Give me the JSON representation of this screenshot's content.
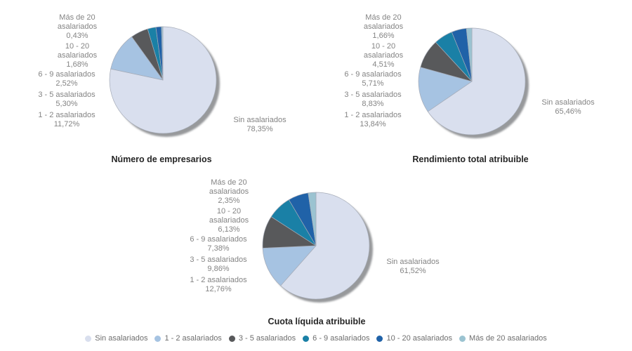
{
  "background": "#FFFFFF",
  "palette": {
    "slice_colors": [
      "#D9DFEE",
      "#A6C3E2",
      "#58595B",
      "#1A80A6",
      "#2062A8",
      "#9BC3D1"
    ],
    "shadow": "#97999B",
    "slice_border": "#A6ACB8",
    "label_text": "#848484",
    "title_text": "#262626",
    "legend_text": "#6E6E6E"
  },
  "categories": [
    "Sin asalariados",
    "1 - 2 asalariados",
    "3 - 5 asalariados",
    "6 - 9 asalariados",
    "10 - 20 asalariados",
    "Más de 20 asalariados"
  ],
  "category_wrap_lines": [
    [
      "Sin asalariados"
    ],
    [
      "1 - 2 asalariados"
    ],
    [
      "3 - 5 asalariados"
    ],
    [
      "6 - 9 asalariados"
    ],
    [
      "10 - 20",
      "asalariados"
    ],
    [
      "Más de 20",
      "asalariados"
    ]
  ],
  "chart_data": [
    {
      "type": "pie",
      "title": "Número de empresarios",
      "categories": [
        "Sin asalariados",
        "1 - 2 asalariados",
        "3 - 5 asalariados",
        "6 - 9 asalariados",
        "10 - 20 asalariados",
        "Más de 20 asalariados"
      ],
      "values": [
        78.35,
        11.72,
        5.3,
        2.52,
        1.68,
        0.43
      ],
      "value_labels": [
        "78,35%",
        "11,72%",
        "5,30%",
        "2,52%",
        "1,68%",
        "0,43%"
      ],
      "start_angle_deg": 0,
      "direction": "clockwise"
    },
    {
      "type": "pie",
      "title": "Rendimiento total atribuible",
      "categories": [
        "Sin asalariados",
        "1 - 2 asalariados",
        "3 - 5 asalariados",
        "6 - 9 asalariados",
        "10 - 20 asalariados",
        "Más de 20 asalariados"
      ],
      "values": [
        65.46,
        13.84,
        8.83,
        5.71,
        4.51,
        1.66
      ],
      "value_labels": [
        "65,46%",
        "13,84%",
        "8,83%",
        "5,71%",
        "4,51%",
        "1,66%"
      ],
      "start_angle_deg": 0,
      "direction": "clockwise"
    },
    {
      "type": "pie",
      "title": "Cuota líquida atribuible",
      "categories": [
        "Sin asalariados",
        "1 - 2 asalariados",
        "3 - 5 asalariados",
        "6 - 9 asalariados",
        "10 - 20 asalariados",
        "Más de 20 asalariados"
      ],
      "values": [
        61.52,
        12.76,
        9.86,
        7.38,
        6.13,
        2.35
      ],
      "value_labels": [
        "61,52%",
        "12,76%",
        "9,86%",
        "7,38%",
        "6,13%",
        "2,35%"
      ],
      "start_angle_deg": 0,
      "direction": "clockwise"
    }
  ],
  "legend": {
    "items": [
      {
        "label": "Sin asalariados"
      },
      {
        "label": "1 - 2 asalariados"
      },
      {
        "label": "3 - 5 asalariados"
      },
      {
        "label": "6 - 9 asalariados"
      },
      {
        "label": "10 - 20 asalariados"
      },
      {
        "label": "Más de 20 asalariados"
      }
    ]
  }
}
